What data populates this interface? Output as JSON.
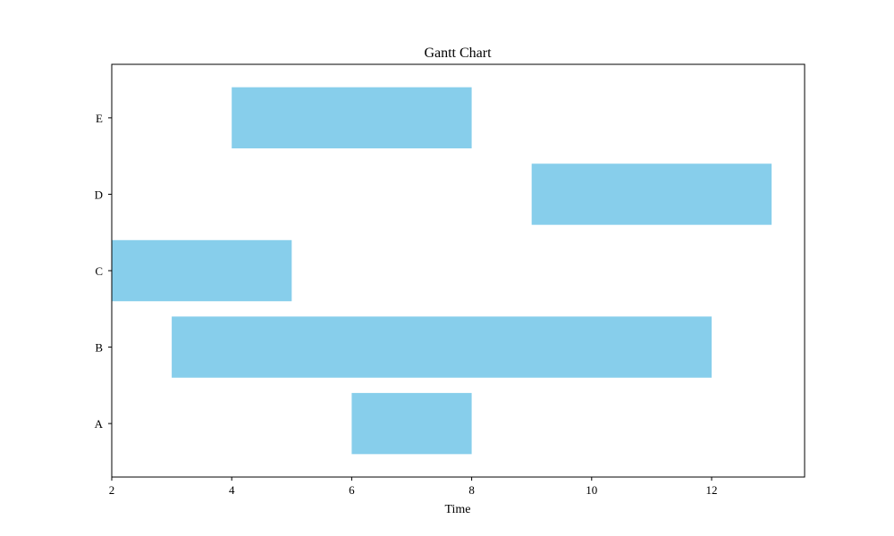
{
  "chart_data": {
    "type": "bar",
    "orientation": "horizontal",
    "title": "Gantt Chart",
    "xlabel": "Time",
    "ylabel": "",
    "xlim": [
      2,
      13.55
    ],
    "x_ticks": [
      2,
      4,
      6,
      8,
      10,
      12
    ],
    "categories": [
      "A",
      "B",
      "C",
      "D",
      "E"
    ],
    "tasks": [
      {
        "task": "A",
        "start": 6,
        "end": 8
      },
      {
        "task": "B",
        "start": 3,
        "end": 12
      },
      {
        "task": "C",
        "start": 2,
        "end": 5
      },
      {
        "task": "D",
        "start": 9,
        "end": 13
      },
      {
        "task": "E",
        "start": 4,
        "end": 8
      }
    ],
    "bar_color": "#87CEEB",
    "grid": false,
    "legend": "none"
  }
}
